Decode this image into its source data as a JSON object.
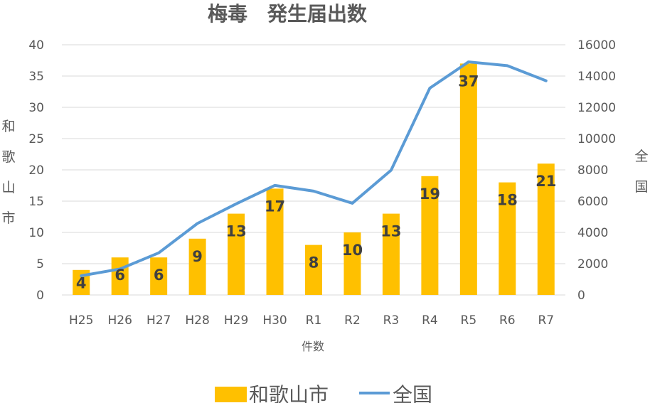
{
  "chart_data": {
    "type": "bar",
    "title": "梅毒　発生届出数",
    "xlabel": "件数",
    "ylabel": "和歌山市",
    "y2label": "全国",
    "categories": [
      "H25",
      "H26",
      "H27",
      "H28",
      "H29",
      "H30",
      "R1",
      "R2",
      "R3",
      "R4",
      "R5",
      "R6",
      "R7"
    ],
    "ylim": [
      0,
      40
    ],
    "y_ticks": [
      0,
      5,
      10,
      15,
      20,
      25,
      30,
      35,
      40
    ],
    "y2lim": [
      0,
      16000
    ],
    "y2_ticks": [
      0,
      2000,
      4000,
      6000,
      8000,
      10000,
      12000,
      14000,
      16000
    ],
    "grid": true,
    "legend_position": "bottom",
    "series": [
      {
        "name": "和歌山市",
        "type": "bar",
        "axis": "left",
        "color": "#FFC000",
        "values": [
          4,
          6,
          6,
          9,
          13,
          17,
          8,
          10,
          13,
          19,
          37,
          18,
          21
        ],
        "data_labels": true
      },
      {
        "name": "全国",
        "type": "line",
        "axis": "right",
        "color": "#5B9BD5",
        "values": [
          1228,
          1661,
          2690,
          4575,
          5826,
          7007,
          6642,
          5867,
          7978,
          13228,
          14906,
          14663,
          13700
        ]
      }
    ]
  }
}
